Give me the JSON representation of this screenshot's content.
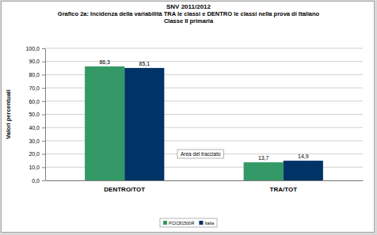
{
  "chart_data": {
    "type": "bar",
    "title": "SNV 2011/2012",
    "subtitle": [
      "Grafico 2a: Incidenza della variabilità  TRA le classi  e DENTRO le classi  nella prova di Italiano",
      "Classe II primaria"
    ],
    "y_label": "Valori percentuali",
    "categories": [
      "DENTRO/TOT",
      "TRA/TOT"
    ],
    "series": [
      {
        "name": "PCIC81500R",
        "color": "#339966",
        "values": [
          86.3,
          13.7
        ],
        "value_labels": [
          "86,3",
          "13,7"
        ]
      },
      {
        "name": "Italia",
        "color": "#003366",
        "values": [
          85.1,
          14.9
        ],
        "value_labels": [
          "85,1",
          "14,9"
        ]
      }
    ],
    "ylim": [
      0,
      100
    ],
    "yticks": [
      {
        "value": 0,
        "label": "0,0"
      },
      {
        "value": 10,
        "label": "10,0"
      },
      {
        "value": 20,
        "label": "20,0"
      },
      {
        "value": 30,
        "label": "30,0"
      },
      {
        "value": 40,
        "label": "40,0"
      },
      {
        "value": 50,
        "label": "50,0"
      },
      {
        "value": 60,
        "label": "60,0"
      },
      {
        "value": 70,
        "label": "70,0"
      },
      {
        "value": 80,
        "label": "80,0"
      },
      {
        "value": 90,
        "label": "90,0"
      },
      {
        "value": 100,
        "label": "100,0"
      }
    ],
    "grid": true,
    "legend": "bottom",
    "data_labels": true,
    "annotations": [
      "Area del tracciato"
    ]
  }
}
